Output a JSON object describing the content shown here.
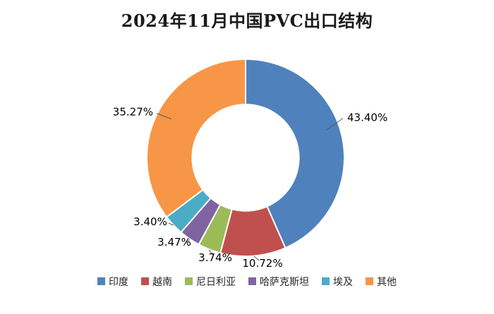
{
  "title": "2024年11月中国PVC出口结构",
  "chart_data": {
    "type": "pie",
    "subtype": "donut",
    "title": "2024年11月中国PVC出口结构",
    "categories": [
      "印度",
      "越南",
      "尼日利亚",
      "哈萨克斯坦",
      "埃及",
      "其他"
    ],
    "values": [
      43.4,
      10.72,
      3.74,
      3.47,
      3.4,
      35.27
    ],
    "labels": [
      "43.40%",
      "10.72%",
      "3.74%",
      "3.47%",
      "3.40%",
      "35.27%"
    ],
    "colors": [
      "#4F81BD",
      "#C0504D",
      "#9BBB59",
      "#8064A2",
      "#4BACC6",
      "#F79646"
    ],
    "legend_position": "bottom",
    "background": "#FFFFFF",
    "start_angle_deg": 0,
    "direction": "clockwise",
    "inner_radius_ratio": 0.54
  }
}
